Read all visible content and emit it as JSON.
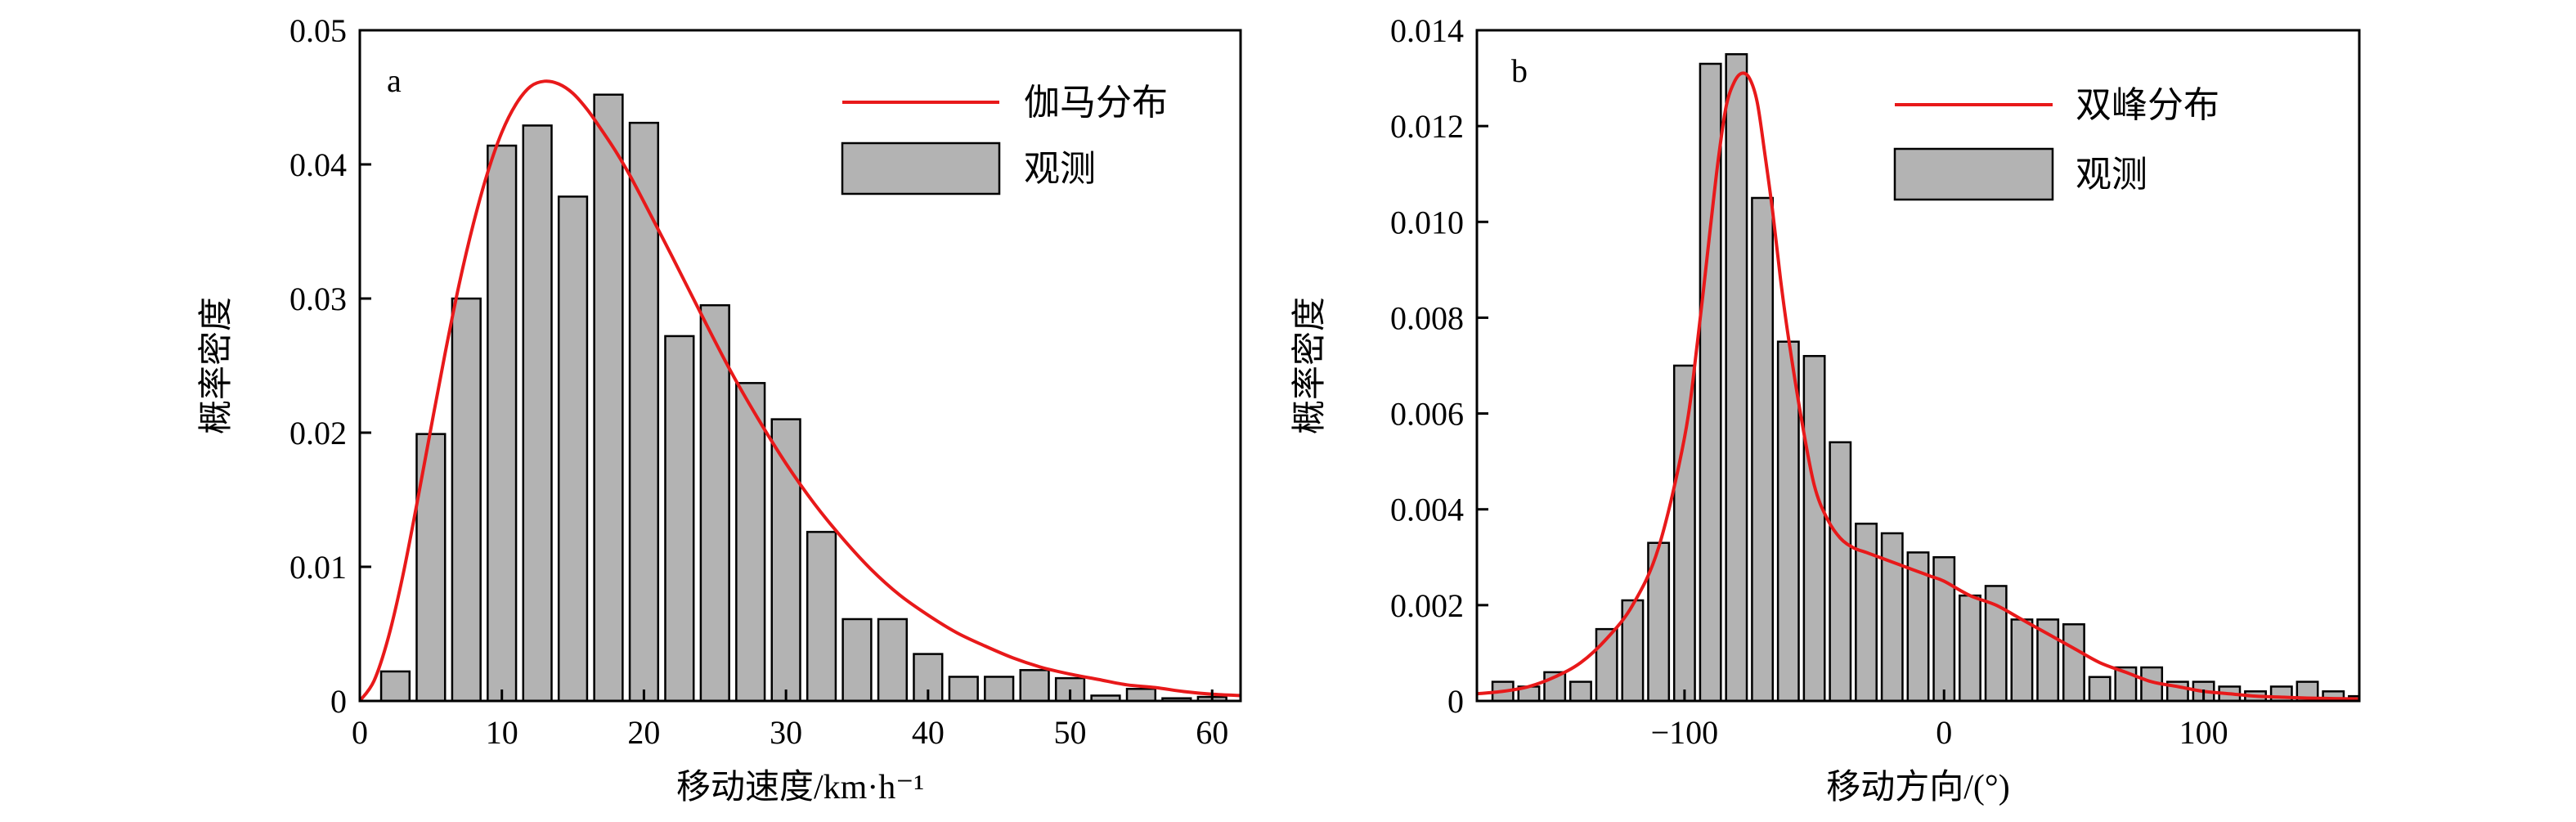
{
  "chart_data": [
    {
      "type": "bar",
      "panel": "a",
      "xlabel": "移动速度/km·h⁻¹",
      "ylabel": "概率密度",
      "xlim": [
        0,
        62
      ],
      "ylim": [
        0,
        0.05
      ],
      "xticks": [
        0,
        10,
        20,
        30,
        40,
        50,
        60
      ],
      "yticks": [
        0,
        0.01,
        0.02,
        0.03,
        0.04,
        0.05
      ],
      "ytick_labels": [
        "0",
        "0.01",
        "0.02",
        "0.03",
        "0.04",
        "0.05"
      ],
      "bin_width": 2.5,
      "bar_fill": 0.8,
      "legend_position": "top-right",
      "series": [
        {
          "name": "观测",
          "kind": "histogram",
          "color": "#b3b3b3",
          "x": [
            2.5,
            5,
            7.5,
            10,
            12.5,
            15,
            17.5,
            20,
            22.5,
            25,
            27.5,
            30,
            32.5,
            35,
            37.5,
            40,
            42.5,
            45,
            47.5,
            50,
            52.5,
            55,
            57.5,
            60
          ],
          "values": [
            0.0022,
            0.0199,
            0.03,
            0.0414,
            0.0429,
            0.0376,
            0.0452,
            0.0431,
            0.0272,
            0.0295,
            0.0237,
            0.021,
            0.0126,
            0.0061,
            0.0061,
            0.0035,
            0.0018,
            0.0018,
            0.0023,
            0.0017,
            0.0004,
            0.0009,
            0.0002,
            0.0003
          ]
        },
        {
          "name": "伽马分布",
          "kind": "curve",
          "color": "#e8191a",
          "x": [
            0,
            1,
            2,
            3,
            4,
            5,
            6,
            7,
            8,
            9,
            10,
            11,
            12,
            13,
            14,
            15,
            16,
            17,
            18,
            19,
            20,
            22,
            24,
            26,
            28,
            30,
            32,
            34,
            36,
            38,
            40,
            42,
            44,
            46,
            48,
            50,
            52,
            54,
            56,
            58,
            60,
            62
          ],
          "values": [
            0,
            0.0015,
            0.0047,
            0.0092,
            0.0146,
            0.0203,
            0.0259,
            0.0311,
            0.0356,
            0.0394,
            0.0424,
            0.0445,
            0.0458,
            0.0462,
            0.046,
            0.0453,
            0.0441,
            0.0426,
            0.041,
            0.0392,
            0.0372,
            0.0331,
            0.0289,
            0.0248,
            0.0211,
            0.0177,
            0.0147,
            0.0121,
            0.0098,
            0.0079,
            0.0064,
            0.0051,
            0.0041,
            0.0032,
            0.0025,
            0.002,
            0.0016,
            0.0012,
            0.001,
            0.0007,
            0.0005,
            0.0004
          ]
        }
      ]
    },
    {
      "type": "bar",
      "panel": "b",
      "xlabel": "移动方向/(°)",
      "ylabel": "概率密度",
      "xlim": [
        -180,
        160
      ],
      "ylim": [
        0,
        0.014
      ],
      "xticks": [
        -100,
        0,
        100
      ],
      "xtick_labels": [
        "−100",
        "0",
        "100"
      ],
      "yticks": [
        0,
        0.002,
        0.004,
        0.006,
        0.008,
        0.01,
        0.012,
        0.014
      ],
      "ytick_labels": [
        "0",
        "0.002",
        "0.004",
        "0.006",
        "0.008",
        "0.010",
        "0.012",
        "0.014"
      ],
      "bin_width": 10,
      "bar_fill": 0.8,
      "legend_position": "top-right",
      "series": [
        {
          "name": "观测",
          "kind": "histogram",
          "color": "#b3b3b3",
          "x": [
            -170,
            -160,
            -150,
            -140,
            -130,
            -120,
            -110,
            -100,
            -90,
            -80,
            -70,
            -60,
            -50,
            -40,
            -30,
            -20,
            -10,
            0,
            10,
            20,
            30,
            40,
            50,
            60,
            70,
            80,
            90,
            100,
            110,
            120,
            130,
            140,
            150,
            160
          ],
          "values": [
            0.0004,
            0.0003,
            0.0006,
            0.0004,
            0.0015,
            0.0021,
            0.0033,
            0.007,
            0.0133,
            0.0135,
            0.0105,
            0.0075,
            0.0072,
            0.0054,
            0.0037,
            0.0035,
            0.0031,
            0.003,
            0.0022,
            0.0024,
            0.0017,
            0.0017,
            0.0016,
            0.0005,
            0.0007,
            0.0007,
            0.0004,
            0.0004,
            0.0003,
            0.0002,
            0.0003,
            0.0004,
            0.0002,
            0.0001
          ]
        },
        {
          "name": "双峰分布",
          "kind": "curve",
          "color": "#e8191a",
          "x": [
            -180,
            -170,
            -160,
            -150,
            -140,
            -130,
            -120,
            -110,
            -100,
            -95,
            -90,
            -87,
            -84,
            -81,
            -78,
            -75,
            -72,
            -69,
            -66,
            -63,
            -60,
            -55,
            -50,
            -45,
            -40,
            -35,
            -30,
            -25,
            -20,
            -15,
            -10,
            -5,
            0,
            10,
            20,
            30,
            40,
            50,
            60,
            70,
            80,
            90,
            100,
            110,
            120,
            130,
            140,
            150,
            160
          ],
          "values": [
            0.00015,
            0.0002,
            0.0003,
            0.0005,
            0.0008,
            0.0013,
            0.002,
            0.0032,
            0.0055,
            0.0075,
            0.0099,
            0.0113,
            0.0124,
            0.0129,
            0.0131,
            0.013,
            0.0125,
            0.0114,
            0.0102,
            0.0088,
            0.0076,
            0.0059,
            0.0045,
            0.0038,
            0.0034,
            0.0032,
            0.0031,
            0.003,
            0.0029,
            0.0028,
            0.0027,
            0.0026,
            0.0025,
            0.0022,
            0.002,
            0.0017,
            0.0014,
            0.0011,
            0.0008,
            0.0006,
            0.0004,
            0.0003,
            0.0002,
            0.00015,
            0.0001,
            8e-05,
            6e-05,
            5e-05,
            4e-05
          ]
        }
      ]
    }
  ]
}
